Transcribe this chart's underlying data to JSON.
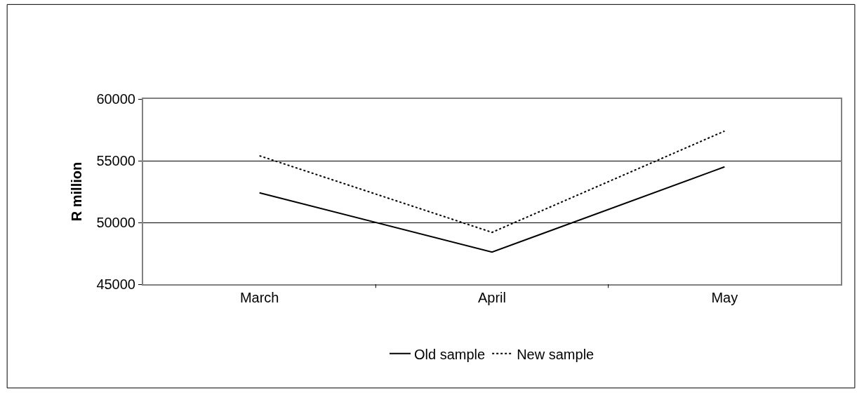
{
  "chart_data": {
    "type": "line",
    "ylabel": "R million",
    "categories": [
      "March",
      "April",
      "May"
    ],
    "series": [
      {
        "name": "Old sample",
        "color": "#000000",
        "line_style": "solid",
        "values": [
          52400,
          47600,
          54500
        ]
      },
      {
        "name": "New sample",
        "color": "#000000",
        "line_style": "dotted",
        "values": [
          55400,
          49200,
          57400
        ]
      }
    ],
    "ylim": [
      45000,
      60000
    ],
    "yticks": [
      45000,
      50000,
      55000,
      60000
    ],
    "grid": "y",
    "legend": "bottom",
    "marker": "none"
  }
}
